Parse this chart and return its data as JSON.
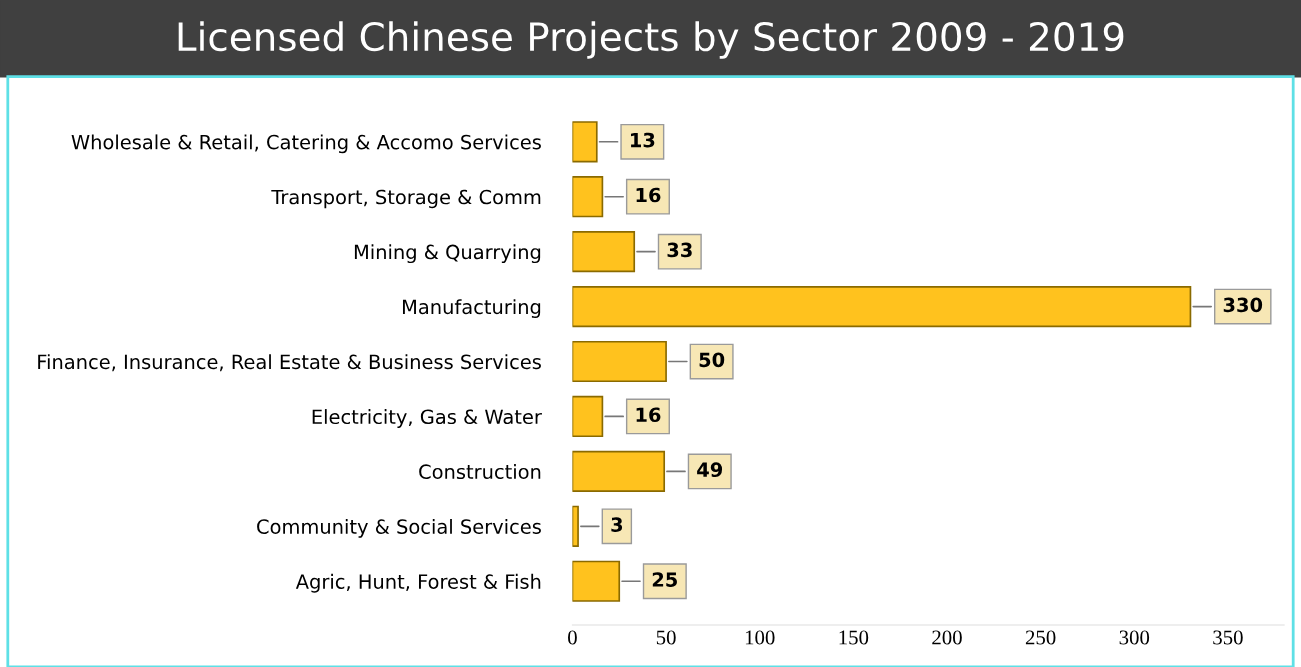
{
  "chart_data": {
    "type": "bar",
    "orientation": "horizontal",
    "title": "Licensed Chinese Projects by Sector 2009 - 2019",
    "categories": [
      "Wholesale & Retail, Catering & Accomo Services",
      "Transport, Storage & Comm",
      "Mining & Quarrying",
      "Manufacturing",
      "Finance, Insurance, Real Estate & Business Services",
      "Electricity, Gas & Water",
      "Construction",
      "Community & Social Services",
      "Agric, Hunt, Forest & Fish"
    ],
    "values": [
      13,
      16,
      33,
      330,
      50,
      16,
      49,
      3,
      25
    ],
    "color": "#ffc21e",
    "xlim": [
      0,
      380
    ],
    "xticks": [
      0,
      50,
      100,
      150,
      200,
      250,
      300,
      350
    ],
    "grid": false,
    "data_labels": true
  }
}
